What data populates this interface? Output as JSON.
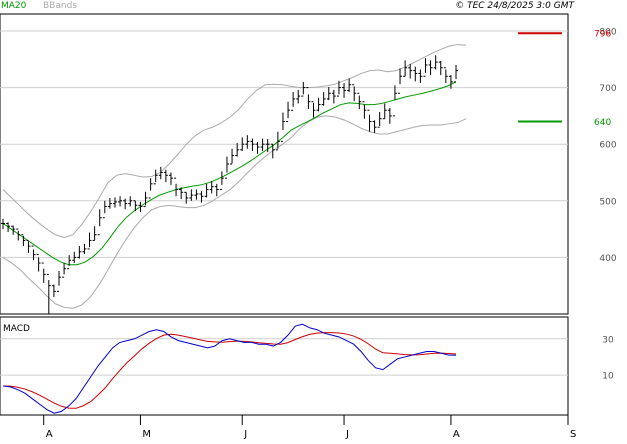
{
  "header": {
    "legend": [
      {
        "label": "MA20",
        "color": "#009900"
      },
      {
        "label": "BBands",
        "color": "#aaaaaa"
      }
    ],
    "copyright": "© TEC 24/8/2025 3:0 GMT"
  },
  "colors": {
    "price": "#000000",
    "ma20": "#009900",
    "bbands": "#aaaaaa",
    "resistance": "#cc0000",
    "support": "#009900",
    "macd": "#0000cc",
    "signal": "#cc0000",
    "grid": "#cfcfcf",
    "border": "#000000"
  },
  "chart_data": [
    {
      "type": "line",
      "name": "price",
      "ylim": [
        300,
        830
      ],
      "yticks": [
        400,
        500,
        600,
        700,
        800
      ],
      "ytick_labels": [
        "400",
        "500",
        "600",
        "700",
        "800"
      ],
      "xlim": [
        0,
        111
      ],
      "xticks": [
        {
          "label": "A",
          "x": 8
        },
        {
          "label": "M",
          "x": 27
        },
        {
          "label": "J",
          "x": 47
        },
        {
          "label": "J",
          "x": 67
        },
        {
          "label": "A",
          "x": 88
        },
        {
          "label": "S",
          "x": 111
        }
      ],
      "bars": {
        "close": [
          460,
          455,
          450,
          440,
          430,
          420,
          405,
          390,
          370,
          350,
          340,
          365,
          380,
          395,
          400,
          410,
          415,
          430,
          440,
          470,
          490,
          495,
          498,
          500,
          495,
          500,
          492,
          490,
          505,
          530,
          545,
          550,
          545,
          540,
          520,
          515,
          505,
          510,
          512,
          508,
          520,
          525,
          520,
          540,
          565,
          580,
          590,
          600,
          605,
          600,
          595,
          600,
          600,
          590,
          605,
          640,
          660,
          680,
          685,
          700,
          675,
          660,
          670,
          680,
          690,
          685,
          700,
          695,
          705,
          690,
          675,
          660,
          640,
          630,
          645,
          660,
          650,
          690,
          720,
          735,
          730,
          725,
          720,
          740,
          735,
          745,
          735,
          720,
          710,
          730
        ],
        "high": [
          468,
          462,
          456,
          447,
          438,
          428,
          414,
          400,
          380,
          360,
          352,
          376,
          390,
          404,
          410,
          420,
          424,
          444,
          455,
          485,
          500,
          505,
          506,
          508,
          504,
          508,
          500,
          498,
          516,
          540,
          555,
          560,
          555,
          550,
          530,
          524,
          515,
          520,
          520,
          517,
          530,
          535,
          530,
          552,
          578,
          592,
          602,
          612,
          616,
          610,
          604,
          610,
          609,
          600,
          622,
          656,
          675,
          692,
          696,
          710,
          688,
          673,
          682,
          692,
          701,
          696,
          712,
          708,
          716,
          702,
          686,
          670,
          652,
          642,
          657,
          672,
          664,
          704,
          734,
          748,
          742,
          737,
          732,
          752,
          748,
          757,
          747,
          732,
          722,
          740
        ],
        "low": [
          450,
          445,
          440,
          430,
          420,
          408,
          395,
          375,
          355,
          300,
          330,
          350,
          370,
          385,
          390,
          398,
          406,
          418,
          430,
          455,
          478,
          486,
          488,
          490,
          485,
          490,
          482,
          480,
          492,
          518,
          533,
          538,
          533,
          528,
          508,
          503,
          495,
          500,
          502,
          497,
          506,
          513,
          508,
          528,
          550,
          566,
          578,
          588,
          592,
          588,
          583,
          588,
          586,
          575,
          592,
          625,
          646,
          666,
          672,
          688,
          662,
          647,
          658,
          668,
          678,
          672,
          688,
          682,
          692,
          676,
          662,
          645,
          622,
          620,
          632,
          645,
          636,
          678,
          706,
          720,
          716,
          711,
          708,
          726,
          722,
          732,
          722,
          708,
          698,
          715
        ]
      },
      "ma20": [
        460,
        450,
        440,
        430,
        420,
        410,
        400,
        392,
        387,
        387,
        392,
        402,
        416,
        435,
        455,
        471,
        483,
        493,
        502,
        510,
        515,
        520,
        523,
        526,
        528,
        532,
        538,
        545,
        553,
        561,
        570,
        580,
        590,
        600,
        612,
        625,
        633,
        640,
        648,
        656,
        663,
        670,
        673,
        672,
        670,
        670,
        672,
        676,
        680,
        684,
        687,
        690,
        694,
        698,
        703,
        710
      ],
      "bb_upper": [
        520,
        505,
        490,
        475,
        462,
        450,
        440,
        435,
        440,
        458,
        480,
        505,
        532,
        545,
        548,
        545,
        542,
        543,
        550,
        565,
        582,
        600,
        615,
        625,
        630,
        638,
        648,
        662,
        680,
        695,
        705,
        706,
        705,
        702,
        700,
        700,
        701,
        703,
        706,
        712,
        718,
        725,
        730,
        731,
        728,
        730,
        736,
        744,
        752,
        760,
        767,
        773,
        776,
        775
      ],
      "bb_lower": [
        400,
        390,
        378,
        362,
        348,
        332,
        318,
        312,
        310,
        316,
        330,
        352,
        378,
        405,
        430,
        452,
        470,
        484,
        490,
        492,
        490,
        488,
        488,
        492,
        500,
        510,
        520,
        534,
        550,
        565,
        578,
        590,
        600,
        612,
        628,
        640,
        648,
        650,
        648,
        643,
        636,
        628,
        622,
        618,
        618,
        622,
        626,
        630,
        633,
        634,
        634,
        636,
        638,
        645
      ],
      "levels": [
        {
          "label": "796",
          "value": 796,
          "kind": "resistance"
        },
        {
          "label": "640",
          "value": 640,
          "kind": "support"
        }
      ]
    },
    {
      "type": "line",
      "name": "MACD",
      "title": "MACD",
      "ylim": [
        -12,
        42
      ],
      "yticks": [
        30,
        10
      ],
      "ytick_labels": [
        "30",
        "10"
      ],
      "macd": [
        4,
        3.5,
        2,
        0,
        -3,
        -6,
        -9,
        -11,
        -10,
        -7,
        -3,
        3,
        9,
        15,
        20,
        25,
        28,
        29,
        30,
        32,
        34,
        35,
        34,
        31,
        29,
        28,
        27,
        26,
        25,
        26,
        29,
        30,
        29,
        28,
        28,
        27,
        27,
        26,
        28,
        32,
        37,
        38,
        36,
        35,
        33,
        32,
        31,
        29,
        27,
        23,
        18,
        14,
        13,
        16,
        19,
        20,
        21,
        22,
        23,
        23,
        22,
        21,
        21
      ],
      "signal": [
        4,
        3.9,
        3.3,
        2.3,
        0.8,
        -1.1,
        -3.2,
        -5.4,
        -7.2,
        -8.2,
        -8.3,
        -6.9,
        -4.6,
        -1,
        3,
        8,
        12.6,
        17,
        20.6,
        24.4,
        27.5,
        30.1,
        32,
        32.5,
        32,
        31.2,
        30.3,
        29.4,
        28.6,
        28.3,
        28.1,
        28.4,
        28.7,
        28.6,
        28.3,
        27.8,
        27.5,
        27.1,
        27,
        27.9,
        29.6,
        31.2,
        32.4,
        33.1,
        33.4,
        33.4,
        33.2,
        32.6,
        31.5,
        29.7,
        27.2,
        24.3,
        22.3,
        22,
        21.7,
        21.3,
        21.1,
        21.2,
        21.6,
        22,
        22.1,
        21.9,
        21.6
      ]
    }
  ]
}
